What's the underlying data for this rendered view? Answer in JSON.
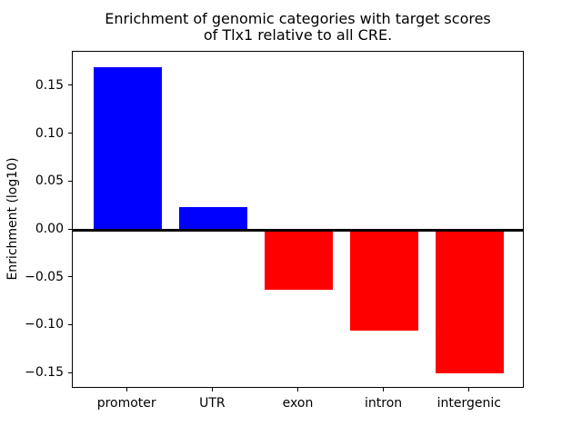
{
  "figure": {
    "title_line1": "Enrichment of genomic categories with target scores",
    "title_line2": "of Tlx1 relative to all CRE.",
    "ylabel": "Enrichment (log10)",
    "background_color": "#ffffff",
    "axis_color": "#000000"
  },
  "chart_data": {
    "type": "bar",
    "title": "Enrichment of genomic categories with target scores of Tlx1 relative to all CRE.",
    "xlabel": "",
    "ylabel": "Enrichment (log10)",
    "categories": [
      "promoter",
      "UTR",
      "exon",
      "intron",
      "intergenic"
    ],
    "values": [
      0.17,
      0.024,
      -0.063,
      -0.105,
      -0.15
    ],
    "bar_colors": [
      "#0000ff",
      "#0000ff",
      "#ff0000",
      "#ff0000",
      "#ff0000"
    ],
    "positive_color": "#0000ff",
    "negative_color": "#ff0000",
    "yticks": [
      0.15,
      0.1,
      0.05,
      0.0,
      -0.05,
      -0.1,
      -0.15
    ],
    "ytick_labels": [
      "0.15",
      "0.10",
      "0.05",
      "0.00",
      "−0.05",
      "−0.10",
      "−0.15"
    ],
    "ylim": [
      -0.166,
      0.186
    ],
    "xlim": [
      -0.64,
      4.64
    ],
    "bar_width": 0.8,
    "zero_line": true,
    "zero_line_color": "#000000",
    "grid": false,
    "legend_position": "none"
  }
}
